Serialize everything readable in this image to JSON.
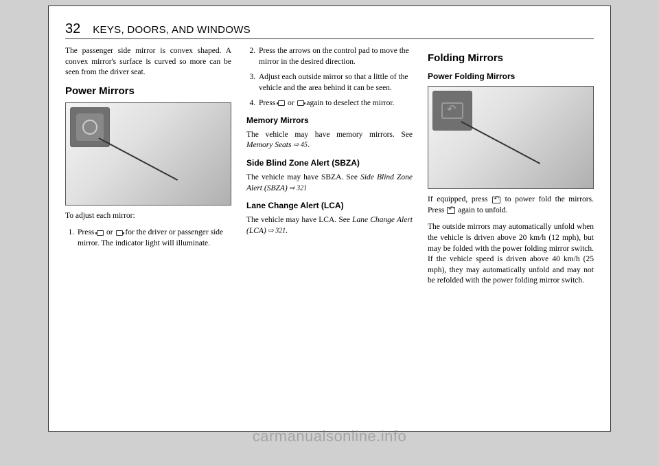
{
  "page": {
    "number": "32",
    "chapter": "KEYS, DOORS, AND WINDOWS"
  },
  "col1": {
    "intro": "The passenger side mirror is convex shaped. A convex mirror's surface is curved so more can be seen from the driver seat.",
    "h_power_mirrors": "Power Mirrors",
    "adjust_intro": "To adjust each mirror:",
    "step1_a": "Press ",
    "step1_b": " or ",
    "step1_c": " for the driver or passenger side mirror. The indicator light will illuminate."
  },
  "col2": {
    "step2": "Press the arrows on the control pad to move the mirror in the desired direction.",
    "step3": "Adjust each outside mirror so that a little of the vehicle and the area behind it can be seen.",
    "step4_a": "Press ",
    "step4_b": " or ",
    "step4_c": " again to deselect the mirror.",
    "h_memory": "Memory Mirrors",
    "memory_a": "The vehicle may have memory mirrors. See ",
    "memory_ref": "Memory Seats",
    "memory_page": " ⇨ 45",
    "memory_end": ".",
    "h_sbza": "Side Blind Zone Alert (SBZA)",
    "sbza_a": "The vehicle may have SBZA. See ",
    "sbza_ref": "Side Blind Zone Alert (SBZA)",
    "sbza_page": " ⇨ 321",
    "h_lca": "Lane Change Alert (LCA)",
    "lca_a": "The vehicle may have LCA. See ",
    "lca_ref": "Lane Change Alert (LCA)",
    "lca_page": " ⇨ 321",
    "lca_end": "."
  },
  "col3": {
    "h_folding": "Folding Mirrors",
    "h_power_folding": "Power Folding Mirrors",
    "fold_a": "If equipped, press ",
    "fold_b": " to power fold the mirrors. Press ",
    "fold_c": " again to unfold.",
    "outside": "The outside mirrors may automatically unfold when the vehicle is driven above 20 km/h (12 mph), but may be folded with the power folding mirror switch. If the vehicle speed is driven above 40 km/h (25 mph), they may automatically unfold and may not be refolded with the power folding mirror switch."
  },
  "watermark": "carmanualsonline.info",
  "colors": {
    "page_bg": "#d0d0d0",
    "paper": "#ffffff",
    "border": "#333333",
    "text": "#000000"
  }
}
